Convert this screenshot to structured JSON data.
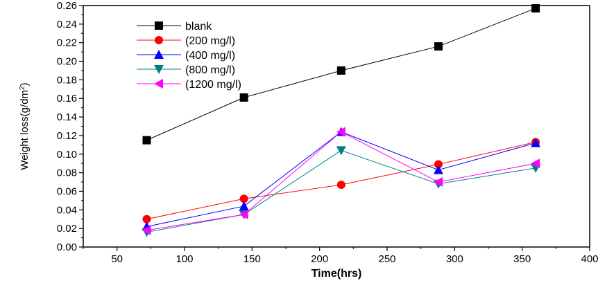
{
  "chart_data": {
    "type": "line",
    "xlabel": "Time(hrs)",
    "ylabel_base": "Weight loss(g/dm",
    "ylabel_sup": "2",
    "ylabel_end": ")",
    "xlim": [
      25,
      400
    ],
    "ylim": [
      0,
      0.26
    ],
    "x_ticks": [
      50,
      100,
      150,
      200,
      250,
      300,
      350,
      400
    ],
    "y_ticks": [
      0.0,
      0.02,
      0.04,
      0.06,
      0.08,
      0.1,
      0.12,
      0.14,
      0.16,
      0.18,
      0.2,
      0.22,
      0.24,
      0.26
    ],
    "x_tick_labels": [
      "50",
      "100",
      "150",
      "200",
      "250",
      "300",
      "350",
      "400"
    ],
    "y_tick_labels": [
      "0.00",
      "0.02",
      "0.04",
      "0.06",
      "0.08",
      "0.10",
      "0.12",
      "0.14",
      "0.16",
      "0.18",
      "0.20",
      "0.22",
      "0.24",
      "0.26"
    ],
    "x": [
      72,
      144,
      216,
      288,
      360
    ],
    "legend_position": "top-left",
    "grid": false,
    "series": [
      {
        "name": "blank",
        "values": [
          0.115,
          0.161,
          0.19,
          0.216,
          0.257
        ],
        "color": "#000000",
        "marker": "square"
      },
      {
        "name": "(200 mg/l)",
        "values": [
          0.03,
          0.052,
          0.067,
          0.089,
          0.113
        ],
        "color": "#ff0000",
        "marker": "circle"
      },
      {
        "name": "(400 mg/l)",
        "values": [
          0.022,
          0.044,
          0.124,
          0.083,
          0.112
        ],
        "color": "#0000ff",
        "marker": "triangle-up"
      },
      {
        "name": "(800 mg/l)",
        "values": [
          0.016,
          0.035,
          0.104,
          0.068,
          0.085
        ],
        "color": "#008080",
        "marker": "triangle-down"
      },
      {
        "name": "(1200 mg/l)",
        "values": [
          0.018,
          0.035,
          0.124,
          0.07,
          0.09
        ],
        "color": "#ff00ff",
        "marker": "triangle-left"
      }
    ]
  }
}
